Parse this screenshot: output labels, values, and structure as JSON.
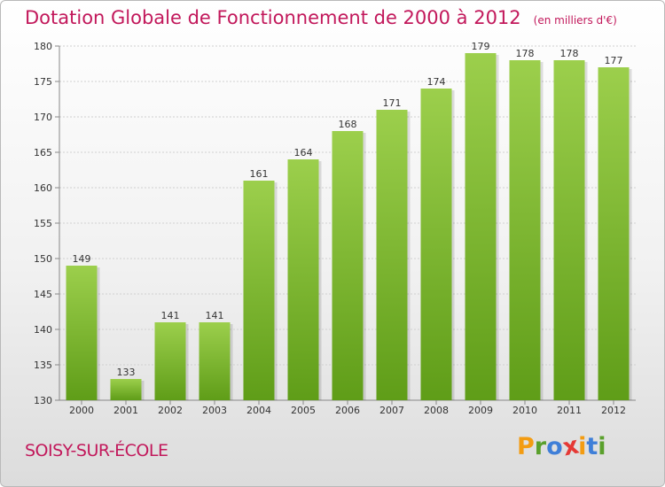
{
  "header": {
    "title": "Dotation Globale de Fonctionnement de 2000 à 2012",
    "subtitle": "(en milliers d'€)"
  },
  "footer": {
    "commune": "SOISY-SUR-ÉCOLE",
    "logo_letters": [
      "P",
      "r",
      "o",
      "x",
      "i",
      "t",
      "i"
    ],
    "logo_colors": [
      "#f39c12",
      "#5aa02c",
      "#3f7fd8",
      "#e53935",
      "#f39c12",
      "#3f7fd8",
      "#5aa02c"
    ]
  },
  "colors": {
    "bar_top": "#9ccf4c",
    "bar_bottom": "#5f9d18",
    "grid": "#d0d0d0"
  },
  "chart_data": {
    "type": "bar",
    "title": "Dotation Globale de Fonctionnement de 2000 à 2012",
    "subtitle": "(en milliers d'€)",
    "categories": [
      "2000",
      "2001",
      "2002",
      "2003",
      "2004",
      "2005",
      "2006",
      "2007",
      "2008",
      "2009",
      "2010",
      "2011",
      "2012"
    ],
    "values": [
      149,
      133,
      141,
      141,
      161,
      164,
      168,
      171,
      174,
      179,
      178,
      178,
      177
    ],
    "ylim": [
      130,
      180
    ],
    "yticks": [
      130,
      135,
      140,
      145,
      150,
      155,
      160,
      165,
      170,
      175,
      180
    ],
    "grid": true,
    "xlabel": "",
    "ylabel": ""
  }
}
